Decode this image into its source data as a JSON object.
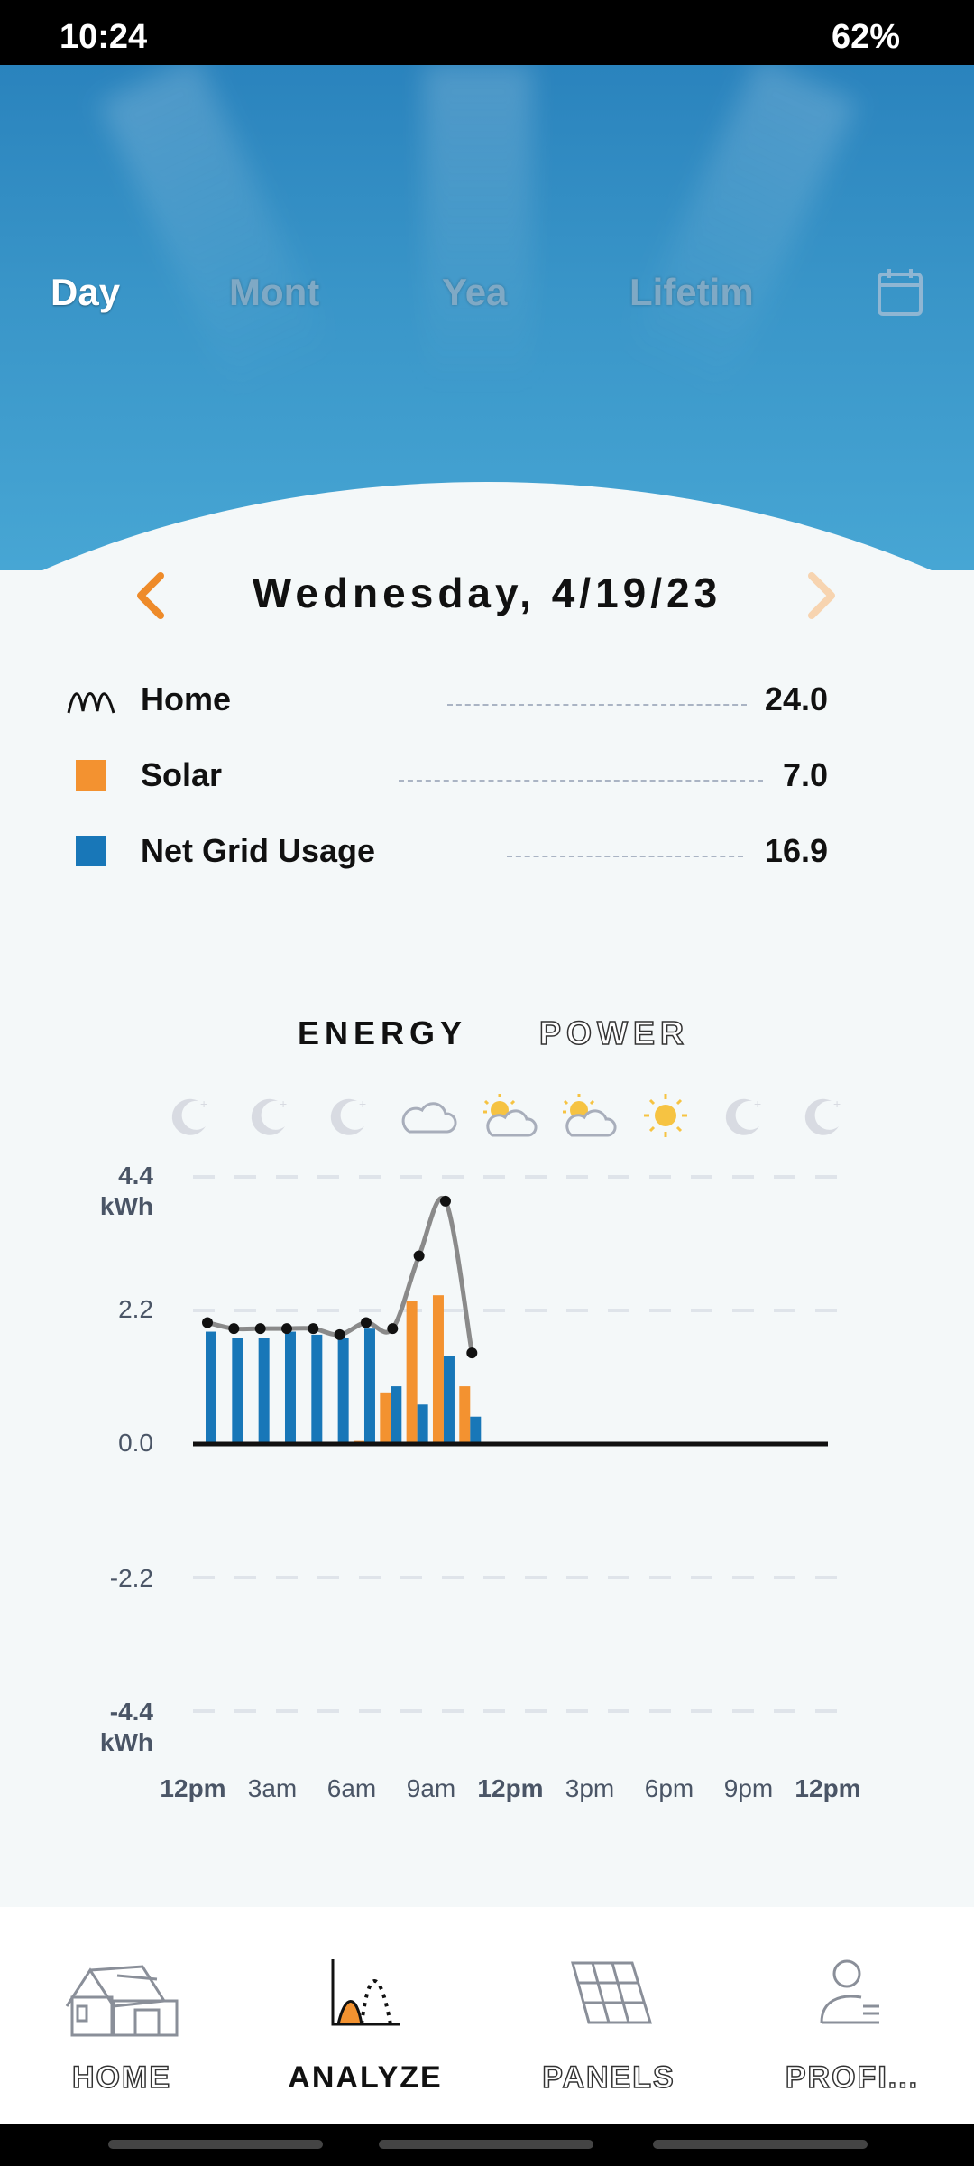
{
  "status_bar": {
    "time": "10:24",
    "battery": "62%"
  },
  "period_tabs": [
    {
      "label": "Day",
      "active": true
    },
    {
      "label": "Mont",
      "active": false
    },
    {
      "label": "Yea",
      "active": false
    },
    {
      "label": "Lifetim",
      "active": false
    }
  ],
  "date": {
    "label": "Wednesday, 4/19/23"
  },
  "legend": [
    {
      "label": "Home",
      "value": "24.0",
      "icon": "home-usage-line-icon",
      "color": "#111111"
    },
    {
      "label": "Solar",
      "value": "7.0",
      "icon": "solar-square-icon",
      "color": "#f39230"
    },
    {
      "label": "Net Grid Usage",
      "value": "16.9",
      "icon": "grid-square-icon",
      "color": "#1877b8"
    }
  ],
  "modes": [
    {
      "label": "ENERGY",
      "active": true
    },
    {
      "label": "POWER",
      "active": false
    }
  ],
  "weather_icons": [
    "moon-icon",
    "moon-icon",
    "moon-icon",
    "cloud-icon",
    "partly-sunny-icon",
    "partly-sunny-icon",
    "sun-icon",
    "moon-icon",
    "moon-icon"
  ],
  "colors": {
    "solar": "#f39230",
    "grid": "#1877b8",
    "home_line": "#8a8a8a",
    "sky": "#3995c8"
  },
  "chart_data": {
    "type": "bar",
    "unit": "kWh",
    "y_ticks": [
      "4.4",
      "2.2",
      "0.0",
      "-2.2",
      "-4.4"
    ],
    "y_tick_values": [
      4.4,
      2.2,
      0.0,
      -2.2,
      -4.4
    ],
    "y_unit_label": "kWh",
    "ylim": [
      -4.4,
      4.4
    ],
    "x_ticks": [
      {
        "label": "12pm",
        "bold": true
      },
      {
        "label": "3am",
        "bold": false
      },
      {
        "label": "6am",
        "bold": false
      },
      {
        "label": "9am",
        "bold": false
      },
      {
        "label": "12pm",
        "bold": true
      },
      {
        "label": "3pm",
        "bold": false
      },
      {
        "label": "6pm",
        "bold": false
      },
      {
        "label": "9pm",
        "bold": false
      },
      {
        "label": "12pm",
        "bold": true
      }
    ],
    "x_hours": [
      0,
      1,
      2,
      3,
      4,
      5,
      6,
      7,
      8,
      9,
      10
    ],
    "series": [
      {
        "name": "Home",
        "type": "line",
        "values": [
          2.0,
          1.9,
          1.9,
          1.9,
          1.9,
          1.8,
          2.0,
          1.9,
          3.1,
          4.0,
          1.5
        ]
      },
      {
        "name": "Solar",
        "type": "bar",
        "values": [
          0.0,
          0.0,
          0.0,
          0.0,
          0.0,
          0.0,
          0.05,
          0.85,
          2.35,
          2.45,
          0.95
        ]
      },
      {
        "name": "Net Grid Usage",
        "type": "bar",
        "values": [
          1.85,
          1.75,
          1.75,
          1.85,
          1.8,
          1.75,
          1.9,
          0.95,
          0.65,
          1.45,
          0.45
        ]
      }
    ]
  },
  "nav": [
    {
      "label": "HOME",
      "icon": "house-icon",
      "active": false
    },
    {
      "label": "ANALYZE",
      "icon": "analyze-chart-icon",
      "active": true
    },
    {
      "label": "PANELS",
      "icon": "solar-panel-icon",
      "active": false
    },
    {
      "label": "PROFI...",
      "icon": "profile-icon",
      "active": false
    }
  ]
}
